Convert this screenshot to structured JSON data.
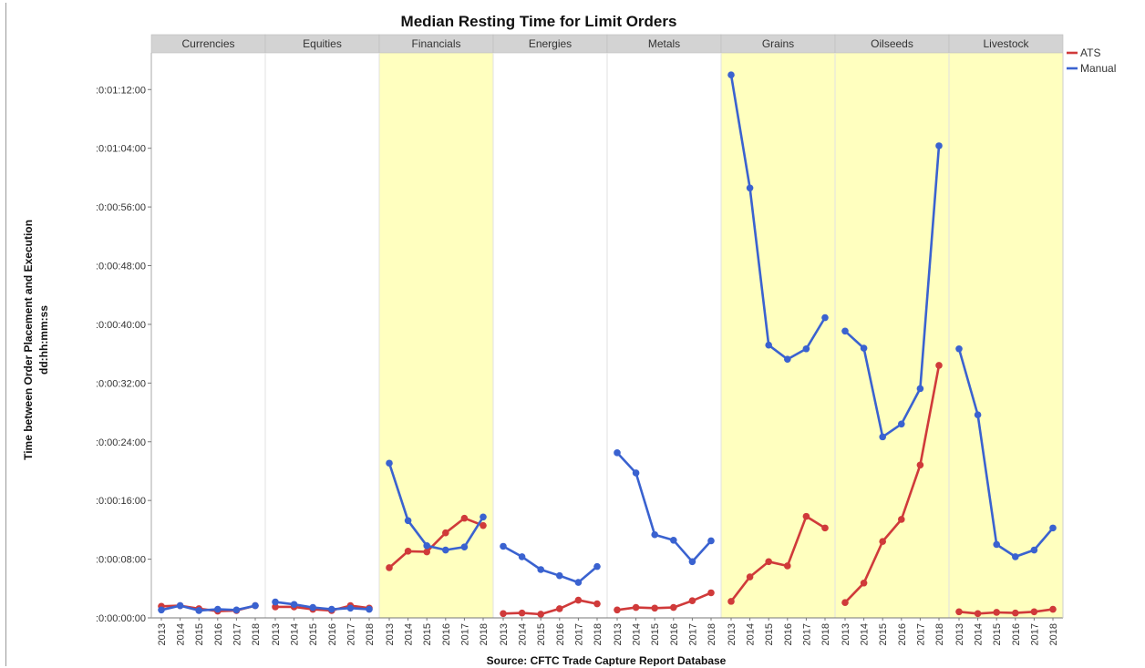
{
  "chart_data": {
    "type": "line",
    "title": "Median Resting Time for Limit Orders",
    "xlabel": "Source: CFTC Trade Capture Report Database",
    "ylabel": "Time between Order Placement and Execution",
    "ylabel2": "dd:hh:mm:ss",
    "y_unit": "seconds",
    "ylim": [
      0,
      4620
    ],
    "y_ticks": [
      0,
      480,
      960,
      1440,
      1920,
      2400,
      2880,
      3360,
      3840,
      4320
    ],
    "y_tick_labels": [
      ":0:00:00:00",
      ":0:00:08:00",
      ":0:00:16:00",
      ":0:00:24:00",
      ":0:00:32:00",
      ":0:00:40:00",
      ":0:00:48:00",
      ":0:00:56:00",
      ":0:01:04:00",
      ":0:01:12:00"
    ],
    "x": [
      "2013",
      "2014",
      "2015",
      "2016",
      "2017",
      "2018"
    ],
    "legend_position": "top-right",
    "grid": false,
    "highlight_color": "#ffffbf",
    "panels": [
      {
        "name": "Currencies",
        "highlighted": false,
        "series": [
          {
            "name": "ATS",
            "color": "#d03a3a",
            "values": [
              95,
              100,
              75,
              55,
              60,
              100
            ]
          },
          {
            "name": "Manual",
            "color": "#3a62d0",
            "values": [
              65,
              100,
              60,
              70,
              65,
              100
            ]
          }
        ]
      },
      {
        "name": "Equities",
        "highlighted": false,
        "series": [
          {
            "name": "ATS",
            "color": "#d03a3a",
            "values": [
              90,
              90,
              70,
              60,
              100,
              80
            ]
          },
          {
            "name": "Manual",
            "color": "#3a62d0",
            "values": [
              130,
              110,
              85,
              70,
              80,
              70
            ]
          }
        ]
      },
      {
        "name": "Financials",
        "highlighted": true,
        "series": [
          {
            "name": "ATS",
            "color": "#d03a3a",
            "values": [
              410,
              545,
              540,
              695,
              815,
              755
            ]
          },
          {
            "name": "Manual",
            "color": "#3a62d0",
            "values": [
              1265,
              795,
              590,
              555,
              580,
              825
            ]
          }
        ]
      },
      {
        "name": "Energies",
        "highlighted": false,
        "series": [
          {
            "name": "ATS",
            "color": "#d03a3a",
            "values": [
              35,
              40,
              30,
              75,
              145,
              115
            ]
          },
          {
            "name": "Manual",
            "color": "#3a62d0",
            "values": [
              585,
              500,
              395,
              345,
              290,
              420
            ]
          }
        ]
      },
      {
        "name": "Metals",
        "highlighted": false,
        "series": [
          {
            "name": "ATS",
            "color": "#d03a3a",
            "values": [
              65,
              85,
              80,
              85,
              140,
              205
            ]
          },
          {
            "name": "Manual",
            "color": "#3a62d0",
            "values": [
              1350,
              1185,
              680,
              635,
              460,
              630
            ]
          }
        ]
      },
      {
        "name": "Grains",
        "highlighted": true,
        "series": [
          {
            "name": "ATS",
            "color": "#d03a3a",
            "values": [
              135,
              335,
              460,
              425,
              830,
              735
            ]
          },
          {
            "name": "Manual",
            "color": "#3a62d0",
            "values": [
              4440,
              3515,
              2230,
              2115,
              2200,
              2455
            ]
          }
        ]
      },
      {
        "name": "Oilseeds",
        "highlighted": true,
        "series": [
          {
            "name": "ATS",
            "color": "#d03a3a",
            "values": [
              125,
              285,
              625,
              805,
              1250,
              2065
            ]
          },
          {
            "name": "Manual",
            "color": "#3a62d0",
            "values": [
              2345,
              2205,
              1480,
              1585,
              1875,
              3860
            ]
          }
        ]
      },
      {
        "name": "Livestock",
        "highlighted": true,
        "series": [
          {
            "name": "ATS",
            "color": "#d03a3a",
            "values": [
              50,
              35,
              45,
              40,
              50,
              70
            ]
          },
          {
            "name": "Manual",
            "color": "#3a62d0",
            "values": [
              2200,
              1660,
              600,
              500,
              555,
              735
            ]
          }
        ]
      }
    ],
    "legend": [
      {
        "name": "ATS",
        "color": "#d03a3a"
      },
      {
        "name": "Manual",
        "color": "#3a62d0"
      }
    ]
  }
}
